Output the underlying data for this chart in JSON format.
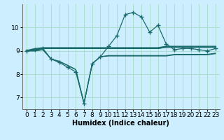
{
  "xlabel": "Humidex (Indice chaleur)",
  "background_color": "#cceeff",
  "grid_color": "#aaddcc",
  "line_color": "#1a6b6b",
  "x": [
    0,
    1,
    2,
    3,
    4,
    5,
    6,
    7,
    8,
    9,
    10,
    11,
    12,
    13,
    14,
    15,
    16,
    17,
    18,
    19,
    20,
    21,
    22,
    23
  ],
  "line_main": [
    9.0,
    9.05,
    9.1,
    8.65,
    8.5,
    8.3,
    8.1,
    6.75,
    8.45,
    8.75,
    9.2,
    9.65,
    10.55,
    10.65,
    10.45,
    9.8,
    10.1,
    9.3,
    9.05,
    9.1,
    9.1,
    9.05,
    9.0,
    9.1
  ],
  "line_flat1": [
    9.0,
    9.08,
    9.12,
    9.12,
    9.12,
    9.12,
    9.12,
    9.12,
    9.12,
    9.12,
    9.12,
    9.12,
    9.12,
    9.12,
    9.12,
    9.12,
    9.12,
    9.18,
    9.18,
    9.18,
    9.18,
    9.18,
    9.18,
    9.18
  ],
  "line_flat2": [
    9.0,
    9.05,
    9.1,
    9.1,
    9.1,
    9.1,
    9.1,
    9.1,
    9.1,
    9.1,
    9.1,
    9.1,
    9.1,
    9.1,
    9.1,
    9.1,
    9.1,
    9.15,
    9.15,
    9.15,
    9.15,
    9.15,
    9.15,
    9.15
  ],
  "line_lower1": [
    9.0,
    9.0,
    9.05,
    8.65,
    8.55,
    8.38,
    8.2,
    6.75,
    8.45,
    8.75,
    8.8,
    8.8,
    8.8,
    8.8,
    8.8,
    8.8,
    8.8,
    8.8,
    8.85,
    8.85,
    8.85,
    8.85,
    8.85,
    8.9
  ],
  "line_lower2": [
    9.0,
    9.0,
    9.05,
    8.65,
    8.55,
    8.38,
    8.2,
    6.75,
    8.45,
    8.75,
    8.78,
    8.78,
    8.78,
    8.78,
    8.78,
    8.78,
    8.78,
    8.78,
    8.83,
    8.83,
    8.83,
    8.83,
    8.83,
    8.88
  ],
  "ylim": [
    6.5,
    11.0
  ],
  "yticks": [
    7,
    8,
    9,
    10
  ],
  "xticks": [
    0,
    1,
    2,
    3,
    4,
    5,
    6,
    7,
    8,
    9,
    10,
    11,
    12,
    13,
    14,
    15,
    16,
    17,
    18,
    19,
    20,
    21,
    22,
    23
  ],
  "marker": "+",
  "markersize": 4,
  "linewidth": 0.9,
  "xlabel_fontsize": 7,
  "tick_fontsize": 6.5
}
